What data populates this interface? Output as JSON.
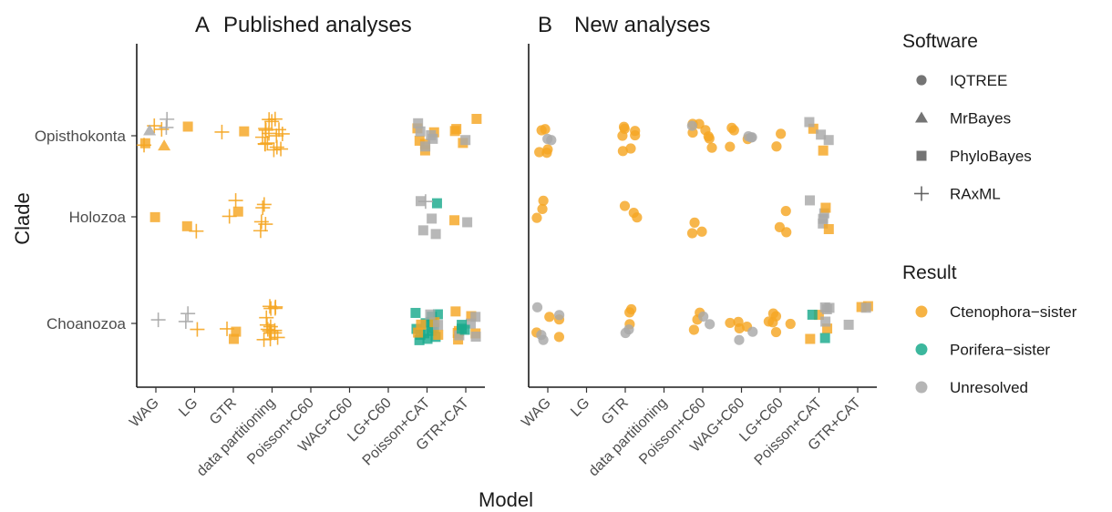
{
  "colors": {
    "ctenophora": "#F5A623",
    "porifera": "#1AAA8C",
    "unresolved": "#A8A8A8",
    "shape_key": "#555555"
  },
  "chart_data": {
    "type": "scatter",
    "xlabel": "Model",
    "ylabel": "Clade",
    "categories": [
      "WAG",
      "LG",
      "GTR",
      "data partitioning",
      "Poisson+C60",
      "WAG+C60",
      "LG+C60",
      "Poisson+CAT",
      "GTR+CAT"
    ],
    "clades": [
      "Opisthokonta",
      "Holozoa",
      "Choanozoa"
    ],
    "grid": false,
    "legend_position": "right",
    "legends": [
      {
        "title": "Software",
        "entries": [
          {
            "label": "IQTREE",
            "shape": "circle"
          },
          {
            "label": "MrBayes",
            "shape": "triangle"
          },
          {
            "label": "PhyloBayes",
            "shape": "square"
          },
          {
            "label": "RAxML",
            "shape": "plus"
          }
        ]
      },
      {
        "title": "Result",
        "entries": [
          {
            "label": "Ctenophora−sister",
            "color": "ctenophora"
          },
          {
            "label": "Porifera−sister",
            "color": "porifera"
          },
          {
            "label": "Unresolved",
            "color": "unresolved"
          }
        ]
      }
    ],
    "panels": [
      {
        "letter": "A",
        "title": "Published analyses",
        "points": [
          {
            "model": "WAG",
            "clade": "Opisthokonta",
            "software": "RAxML",
            "result": "Ctenophora-sister",
            "count": 3
          },
          {
            "model": "WAG",
            "clade": "Opisthokonta",
            "software": "RAxML",
            "result": "Unresolved",
            "count": 2
          },
          {
            "model": "WAG",
            "clade": "Opisthokonta",
            "software": "MrBayes",
            "result": "Ctenophora-sister",
            "count": 1
          },
          {
            "model": "WAG",
            "clade": "Opisthokonta",
            "software": "MrBayes",
            "result": "Unresolved",
            "count": 1
          },
          {
            "model": "WAG",
            "clade": "Opisthokonta",
            "software": "PhyloBayes",
            "result": "Ctenophora-sister",
            "count": 1
          },
          {
            "model": "WAG",
            "clade": "Holozoa",
            "software": "PhyloBayes",
            "result": "Ctenophora-sister",
            "count": 1
          },
          {
            "model": "WAG",
            "clade": "Choanozoa",
            "software": "RAxML",
            "result": "Unresolved",
            "count": 1
          },
          {
            "model": "LG",
            "clade": "Opisthokonta",
            "software": "PhyloBayes",
            "result": "Ctenophora-sister",
            "count": 1
          },
          {
            "model": "LG",
            "clade": "Holozoa",
            "software": "PhyloBayes",
            "result": "Ctenophora-sister",
            "count": 1
          },
          {
            "model": "LG",
            "clade": "Holozoa",
            "software": "RAxML",
            "result": "Ctenophora-sister",
            "count": 1
          },
          {
            "model": "LG",
            "clade": "Choanozoa",
            "software": "RAxML",
            "result": "Unresolved",
            "count": 2
          },
          {
            "model": "LG",
            "clade": "Choanozoa",
            "software": "RAxML",
            "result": "Ctenophora-sister",
            "count": 1
          },
          {
            "model": "GTR",
            "clade": "Opisthokonta",
            "software": "RAxML",
            "result": "Ctenophora-sister",
            "count": 1
          },
          {
            "model": "GTR",
            "clade": "Opisthokonta",
            "software": "PhyloBayes",
            "result": "Ctenophora-sister",
            "count": 1
          },
          {
            "model": "GTR",
            "clade": "Holozoa",
            "software": "RAxML",
            "result": "Ctenophora-sister",
            "count": 2
          },
          {
            "model": "GTR",
            "clade": "Holozoa",
            "software": "PhyloBayes",
            "result": "Ctenophora-sister",
            "count": 1
          },
          {
            "model": "GTR",
            "clade": "Choanozoa",
            "software": "RAxML",
            "result": "Ctenophora-sister",
            "count": 1
          },
          {
            "model": "GTR",
            "clade": "Choanozoa",
            "software": "PhyloBayes",
            "result": "Ctenophora-sister",
            "count": 2
          },
          {
            "model": "data partitioning",
            "clade": "Opisthokonta",
            "software": "RAxML",
            "result": "Ctenophora-sister",
            "count": 16
          },
          {
            "model": "data partitioning",
            "clade": "Holozoa",
            "software": "RAxML",
            "result": "Ctenophora-sister",
            "count": 5
          },
          {
            "model": "data partitioning",
            "clade": "Choanozoa",
            "software": "RAxML",
            "result": "Ctenophora-sister",
            "count": 16
          },
          {
            "model": "Poisson+CAT",
            "clade": "Opisthokonta",
            "software": "PhyloBayes",
            "result": "Ctenophora-sister",
            "count": 5
          },
          {
            "model": "Poisson+CAT",
            "clade": "Opisthokonta",
            "software": "PhyloBayes",
            "result": "Unresolved",
            "count": 5
          },
          {
            "model": "Poisson+CAT",
            "clade": "Holozoa",
            "software": "PhyloBayes",
            "result": "Unresolved",
            "count": 4
          },
          {
            "model": "Poisson+CAT",
            "clade": "Holozoa",
            "software": "PhyloBayes",
            "result": "Porifera-sister",
            "count": 1
          },
          {
            "model": "Poisson+CAT",
            "clade": "Holozoa",
            "software": "RAxML",
            "result": "Unresolved",
            "count": 1
          },
          {
            "model": "Poisson+CAT",
            "clade": "Choanozoa",
            "software": "PhyloBayes",
            "result": "Porifera-sister",
            "count": 14
          },
          {
            "model": "Poisson+CAT",
            "clade": "Choanozoa",
            "software": "PhyloBayes",
            "result": "Ctenophora-sister",
            "count": 4
          },
          {
            "model": "Poisson+CAT",
            "clade": "Choanozoa",
            "software": "PhyloBayes",
            "result": "Unresolved",
            "count": 2
          },
          {
            "model": "GTR+CAT",
            "clade": "Opisthokonta",
            "software": "PhyloBayes",
            "result": "Ctenophora-sister",
            "count": 4
          },
          {
            "model": "GTR+CAT",
            "clade": "Opisthokonta",
            "software": "PhyloBayes",
            "result": "Unresolved",
            "count": 1
          },
          {
            "model": "GTR+CAT",
            "clade": "Holozoa",
            "software": "PhyloBayes",
            "result": "Ctenophora-sister",
            "count": 1
          },
          {
            "model": "GTR+CAT",
            "clade": "Holozoa",
            "software": "PhyloBayes",
            "result": "Unresolved",
            "count": 1
          },
          {
            "model": "GTR+CAT",
            "clade": "Choanozoa",
            "software": "PhyloBayes",
            "result": "Ctenophora-sister",
            "count": 6
          },
          {
            "model": "GTR+CAT",
            "clade": "Choanozoa",
            "software": "PhyloBayes",
            "result": "Unresolved",
            "count": 4
          },
          {
            "model": "GTR+CAT",
            "clade": "Choanozoa",
            "software": "PhyloBayes",
            "result": "Porifera-sister",
            "count": 3
          }
        ]
      },
      {
        "letter": "B",
        "title": "New analyses",
        "points": [
          {
            "model": "WAG",
            "clade": "Opisthokonta",
            "software": "IQTREE",
            "result": "Ctenophora-sister",
            "count": 5
          },
          {
            "model": "WAG",
            "clade": "Opisthokonta",
            "software": "IQTREE",
            "result": "Unresolved",
            "count": 2
          },
          {
            "model": "WAG",
            "clade": "Holozoa",
            "software": "IQTREE",
            "result": "Ctenophora-sister",
            "count": 3
          },
          {
            "model": "WAG",
            "clade": "Choanozoa",
            "software": "IQTREE",
            "result": "Ctenophora-sister",
            "count": 4
          },
          {
            "model": "WAG",
            "clade": "Choanozoa",
            "software": "IQTREE",
            "result": "Unresolved",
            "count": 4
          },
          {
            "model": "GTR",
            "clade": "Opisthokonta",
            "software": "IQTREE",
            "result": "Ctenophora-sister",
            "count": 7
          },
          {
            "model": "GTR",
            "clade": "Holozoa",
            "software": "IQTREE",
            "result": "Ctenophora-sister",
            "count": 3
          },
          {
            "model": "GTR",
            "clade": "Choanozoa",
            "software": "IQTREE",
            "result": "Ctenophora-sister",
            "count": 3
          },
          {
            "model": "GTR",
            "clade": "Choanozoa",
            "software": "IQTREE",
            "result": "Unresolved",
            "count": 2
          },
          {
            "model": "Poisson+C60",
            "clade": "Opisthokonta",
            "software": "IQTREE",
            "result": "Ctenophora-sister",
            "count": 7
          },
          {
            "model": "Poisson+C60",
            "clade": "Opisthokonta",
            "software": "IQTREE",
            "result": "Unresolved",
            "count": 1
          },
          {
            "model": "Poisson+C60",
            "clade": "Holozoa",
            "software": "IQTREE",
            "result": "Ctenophora-sister",
            "count": 3
          },
          {
            "model": "Poisson+C60",
            "clade": "Choanozoa",
            "software": "IQTREE",
            "result": "Ctenophora-sister",
            "count": 3
          },
          {
            "model": "Poisson+C60",
            "clade": "Choanozoa",
            "software": "IQTREE",
            "result": "Unresolved",
            "count": 2
          },
          {
            "model": "WAG+C60",
            "clade": "Opisthokonta",
            "software": "IQTREE",
            "result": "Ctenophora-sister",
            "count": 4
          },
          {
            "model": "WAG+C60",
            "clade": "Opisthokonta",
            "software": "IQTREE",
            "result": "Unresolved",
            "count": 3
          },
          {
            "model": "WAG+C60",
            "clade": "Choanozoa",
            "software": "IQTREE",
            "result": "Ctenophora-sister",
            "count": 4
          },
          {
            "model": "WAG+C60",
            "clade": "Choanozoa",
            "software": "IQTREE",
            "result": "Unresolved",
            "count": 2
          },
          {
            "model": "LG+C60",
            "clade": "Opisthokonta",
            "software": "IQTREE",
            "result": "Ctenophora-sister",
            "count": 2
          },
          {
            "model": "LG+C60",
            "clade": "Holozoa",
            "software": "IQTREE",
            "result": "Ctenophora-sister",
            "count": 3
          },
          {
            "model": "LG+C60",
            "clade": "Choanozoa",
            "software": "IQTREE",
            "result": "Ctenophora-sister",
            "count": 6
          },
          {
            "model": "Poisson+CAT",
            "clade": "Opisthokonta",
            "software": "PhyloBayes",
            "result": "Ctenophora-sister",
            "count": 2
          },
          {
            "model": "Poisson+CAT",
            "clade": "Opisthokonta",
            "software": "PhyloBayes",
            "result": "Unresolved",
            "count": 3
          },
          {
            "model": "Poisson+CAT",
            "clade": "Holozoa",
            "software": "PhyloBayes",
            "result": "Unresolved",
            "count": 4
          },
          {
            "model": "Poisson+CAT",
            "clade": "Holozoa",
            "software": "PhyloBayes",
            "result": "Ctenophora-sister",
            "count": 2
          },
          {
            "model": "Poisson+CAT",
            "clade": "Choanozoa",
            "software": "PhyloBayes",
            "result": "Ctenophora-sister",
            "count": 3
          },
          {
            "model": "Poisson+CAT",
            "clade": "Choanozoa",
            "software": "PhyloBayes",
            "result": "Porifera-sister",
            "count": 2
          },
          {
            "model": "Poisson+CAT",
            "clade": "Choanozoa",
            "software": "PhyloBayes",
            "result": "Unresolved",
            "count": 4
          },
          {
            "model": "GTR+CAT",
            "clade": "Choanozoa",
            "software": "PhyloBayes",
            "result": "Ctenophora-sister",
            "count": 2
          },
          {
            "model": "GTR+CAT",
            "clade": "Choanozoa",
            "software": "PhyloBayes",
            "result": "Unresolved",
            "count": 2
          }
        ]
      }
    ]
  }
}
